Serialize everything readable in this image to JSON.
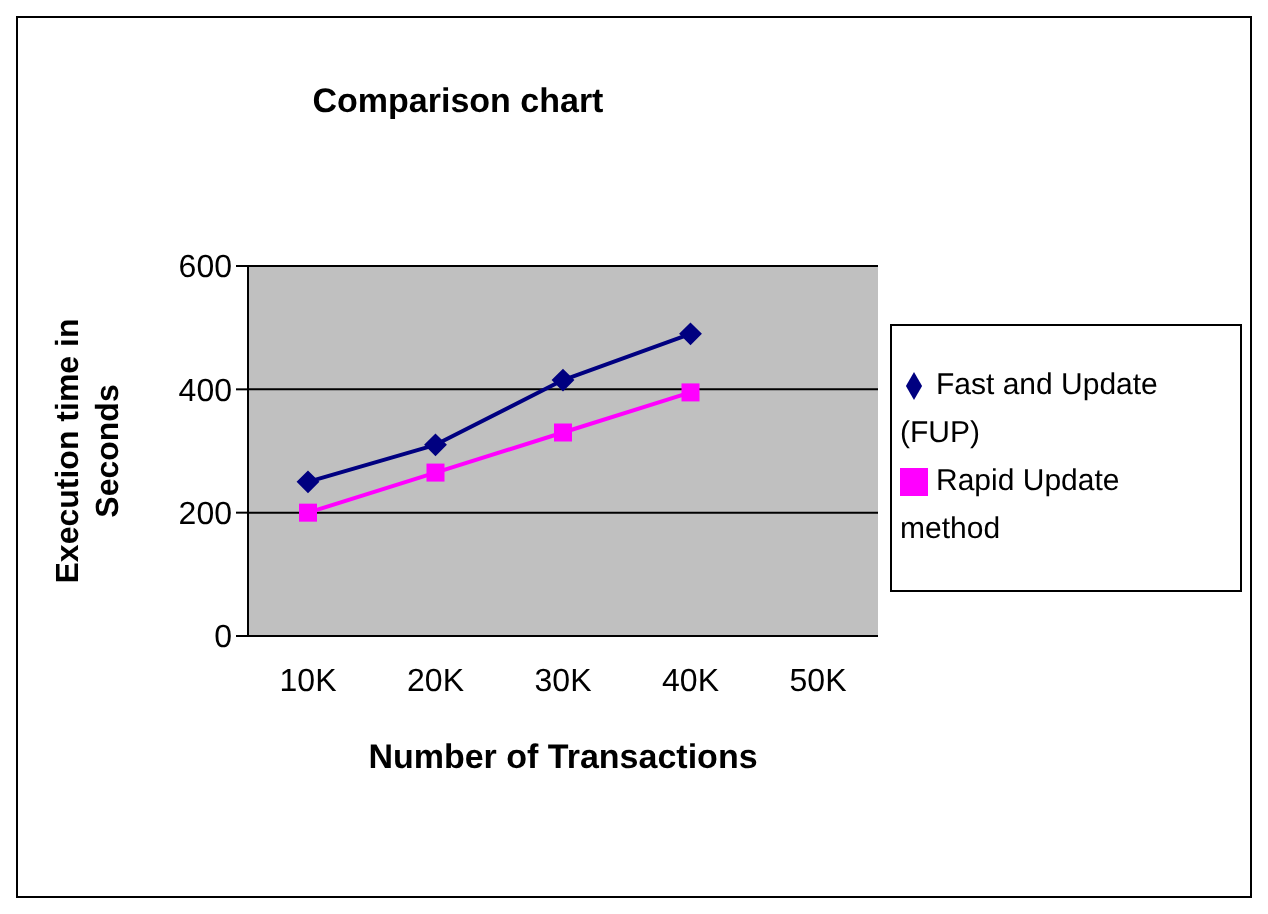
{
  "chart_data": {
    "type": "line",
    "title": "Comparison chart",
    "xlabel": "Number of Transactions",
    "ylabel": "Execution time in Seconds",
    "categories": [
      "10K",
      "20K",
      "30K",
      "40K",
      "50K"
    ],
    "series": [
      {
        "name": "Fast and Update (FUP)",
        "color": "#000080",
        "values": [
          250,
          310,
          415,
          490,
          null
        ],
        "marker": "diamond"
      },
      {
        "name": "Rapid Update method",
        "color": "#ff00ff",
        "values": [
          200,
          265,
          330,
          395,
          null
        ],
        "marker": "square"
      }
    ],
    "ylim": [
      0,
      600
    ],
    "yticks": [
      0,
      200,
      400,
      600
    ],
    "grid": "y",
    "legend": "right",
    "line_style": "solid"
  }
}
